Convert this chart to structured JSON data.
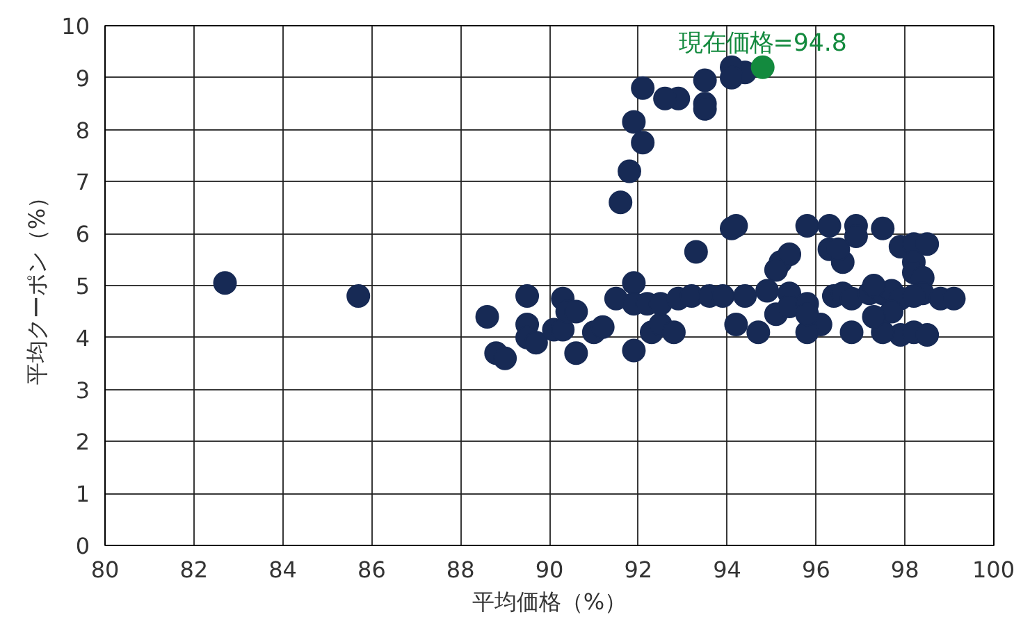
{
  "chart_data": {
    "type": "scatter",
    "xlabel": "平均価格（%）",
    "ylabel": "平均クーポン（%）",
    "xlim": [
      80,
      100
    ],
    "xticks": [
      80,
      82,
      84,
      86,
      88,
      90,
      92,
      94,
      96,
      98,
      100
    ],
    "ylim": [
      0,
      10
    ],
    "yticks": [
      0,
      1,
      2,
      3,
      4,
      5,
      6,
      7,
      8,
      9,
      10
    ],
    "grid": true,
    "marker": "circle",
    "series": [
      {
        "color": "#172a55",
        "x": [
          94.4,
          94.1,
          94.1,
          93.5,
          93.5,
          93.5,
          92.9,
          92.6,
          92.1,
          92.1,
          91.9,
          91.8,
          91.6,
          94.2,
          94.1,
          93.3,
          95.8,
          96.3,
          96.9,
          97.5,
          96.3,
          96.6,
          95.2,
          95.4,
          95.1,
          96.5,
          96.9,
          97.9,
          98.2,
          98.5,
          98.2,
          98.2,
          98.4,
          82.7,
          85.7,
          88.6,
          89.5,
          89.5,
          89.5,
          88.8,
          89.0,
          89.7,
          90.1,
          90.3,
          90.3,
          90.4,
          90.6,
          90.6,
          91.0,
          91.2,
          91.5,
          91.9,
          91.9,
          91.9,
          92.2,
          92.3,
          92.5,
          92.8,
          92.5,
          92.9,
          93.2,
          93.6,
          93.9,
          94.4,
          94.9,
          94.2,
          94.7,
          95.1,
          95.4,
          95.4,
          95.8,
          96.1,
          95.8,
          95.8,
          96.4,
          96.6,
          96.8,
          96.8,
          97.2,
          97.5,
          97.7,
          97.9,
          97.9,
          97.5,
          98.2,
          98.5,
          98.4,
          98.8,
          99.1,
          97.7,
          97.3,
          98.2,
          97.3
        ],
        "values": [
          9.1,
          9.2,
          9.0,
          8.95,
          8.5,
          8.4,
          8.6,
          8.6,
          8.8,
          7.75,
          8.15,
          7.2,
          6.6,
          6.15,
          6.1,
          5.65,
          6.15,
          6.15,
          6.15,
          6.1,
          5.7,
          5.45,
          5.45,
          5.6,
          5.3,
          5.7,
          5.95,
          5.75,
          5.8,
          5.8,
          5.45,
          5.25,
          5.15,
          5.05,
          4.8,
          4.4,
          4.8,
          4.25,
          4.0,
          3.7,
          3.6,
          3.9,
          4.15,
          4.15,
          4.75,
          4.5,
          4.5,
          3.7,
          4.1,
          4.2,
          4.75,
          5.05,
          4.65,
          3.75,
          4.65,
          4.1,
          4.25,
          4.1,
          4.65,
          4.75,
          4.8,
          4.8,
          4.8,
          4.8,
          4.9,
          4.25,
          4.1,
          4.45,
          4.85,
          4.6,
          4.65,
          4.25,
          4.1,
          4.45,
          4.8,
          4.85,
          4.75,
          4.1,
          4.85,
          4.85,
          4.9,
          4.75,
          4.05,
          4.1,
          4.1,
          4.05,
          4.85,
          4.75,
          4.75,
          4.5,
          4.4,
          4.8,
          5.0
        ]
      },
      {
        "color": "#138a3e",
        "x": [
          94.8
        ],
        "values": [
          9.2
        ]
      }
    ],
    "annotations": [
      {
        "text": "現在価格=94.8",
        "x": 94.8,
        "y": 9.2
      }
    ]
  }
}
